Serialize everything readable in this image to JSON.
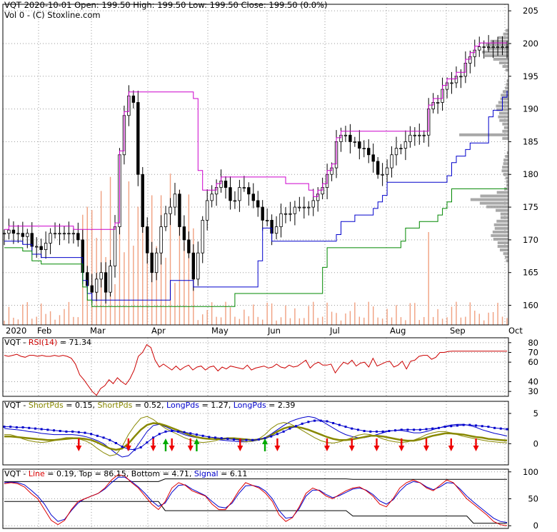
{
  "header": {
    "line1": "VQT  2020-10-01 Open: 199.50  High: 199.50  Low: 199.50  Close: 199.50 (0.0%)",
    "line2": "Vol 0   - (C) Stoxline.com"
  },
  "colors": {
    "background": "#ffffff",
    "frame": "#000000",
    "grid": "#9a9a9a",
    "upper_band": "#cc00cc",
    "upper_band_falling": "#dd0000",
    "lower_band": "#0000cc",
    "long_band": "#008800",
    "volume": "#f0a080",
    "volume_profile": "#a8a8a8",
    "rsi": "#cc0000",
    "short_pds": "#888800",
    "long_pds": "#0000cc",
    "stoch_line": "#dd0000",
    "stoch_signal": "#0000cc",
    "arrow_down": "#ee0000",
    "arrow_up": "#00aa00"
  },
  "chart_data": [
    {
      "type": "candlestick",
      "name": "price",
      "x_labels": [
        "2020",
        "Feb",
        "Mar",
        "Apr",
        "May",
        "Jun",
        "Jul",
        "Aug",
        "Sep",
        "Oct"
      ],
      "y_ticks": [
        160,
        165,
        170,
        175,
        180,
        185,
        190,
        195,
        200,
        205
      ],
      "ylim": [
        157,
        206
      ],
      "y_side": "right",
      "grid": true,
      "close_series": [
        171,
        171.5,
        171,
        171,
        170.5,
        171,
        169,
        169,
        168.5,
        169.5,
        171,
        171,
        171,
        171,
        171,
        171,
        170,
        165,
        163,
        162,
        164,
        165,
        162,
        166,
        172,
        183,
        189,
        192,
        191,
        180,
        172,
        168,
        165,
        168,
        172,
        174,
        175,
        177,
        172,
        170,
        168,
        164,
        168,
        173,
        176,
        177,
        178,
        179,
        178,
        176,
        176,
        178,
        178,
        177,
        176,
        175,
        173,
        173,
        171,
        172,
        174,
        174,
        174,
        175,
        175,
        175,
        175,
        176,
        177,
        178,
        180,
        181,
        185,
        186,
        186,
        185,
        185,
        184,
        184,
        183,
        182,
        180,
        180,
        181,
        183,
        184,
        184,
        185,
        186,
        186,
        186,
        186,
        190,
        191,
        191,
        193,
        194,
        194,
        195,
        195,
        197,
        198,
        199,
        199.5,
        199.5,
        199.5,
        199.5,
        199.5,
        199.5,
        199.5
      ]
    },
    {
      "type": "line",
      "name": "RSI(14)",
      "header": "VQT - RSI(14) = 71.34",
      "label_prefix": "VQT - ",
      "label_name": "RSI(14)",
      "label_value": " = 71.34",
      "y_ticks": [
        30,
        40,
        60,
        70,
        80
      ],
      "ylim": [
        25,
        85
      ],
      "values": [
        67,
        66,
        67,
        68,
        66,
        65,
        67,
        67,
        66,
        67,
        66,
        66,
        67,
        66,
        67,
        66,
        64,
        58,
        47,
        42,
        36,
        30,
        26,
        33,
        36,
        42,
        38,
        44,
        40,
        37,
        43,
        52,
        66,
        70,
        78,
        75,
        62,
        55,
        58,
        55,
        52,
        56,
        52,
        55,
        57,
        52,
        55,
        56,
        52,
        55,
        56,
        51,
        55,
        53,
        56,
        55,
        54,
        53,
        57,
        52,
        54,
        55,
        56,
        54,
        55,
        58,
        55,
        54,
        57,
        55,
        56,
        59,
        62,
        54,
        58,
        60,
        57,
        57,
        58,
        49,
        55,
        60,
        58,
        62,
        56,
        59,
        60,
        55,
        64,
        56,
        58,
        60,
        61,
        55,
        57,
        61,
        53,
        61,
        62,
        66,
        67,
        67,
        63,
        65,
        70,
        70,
        71,
        71.34,
        71.34,
        71.34,
        71.34,
        71.34,
        71.34,
        71.34,
        71.34,
        71.34,
        71.34,
        71.34,
        71.34,
        71.34,
        71.34
      ]
    },
    {
      "type": "line",
      "name": "Pds",
      "header": "VQT - ShortPds = 0.15, ShortPds = 0.52, LongPds = 1.27, LongPds = 2.39",
      "label_vqt": "VQT - ",
      "label_short1": "ShortPds",
      "label_short1_value": " = 0.15, ",
      "label_short2": "ShortPds",
      "label_short2_value": " = 0.52, ",
      "label_long1": "LongPds",
      "label_long1_value": " = 1.27, ",
      "label_long2": "LongPds",
      "label_long2_value": " = 2.39",
      "y_ticks": [
        0,
        5
      ],
      "ylim": [
        -3.5,
        7
      ],
      "short_fast": [
        1.5,
        1.5,
        1.2,
        0.8,
        0.5,
        0.3,
        0.2,
        0.3,
        0.5,
        0.8,
        1.0,
        1.0,
        0.8,
        0.5,
        0.0,
        -0.8,
        -1.5,
        -2.0,
        -1.8,
        -0.5,
        1.5,
        3.0,
        4.2,
        4.5,
        4.0,
        3.2,
        2.5,
        2.0,
        1.5,
        1.0,
        0.6,
        0.3,
        0.2,
        0.3,
        0.5,
        0.8,
        1.0,
        0.8,
        0.5,
        0.3,
        0.4,
        0.8,
        1.5,
        2.5,
        3.2,
        3.5,
        3.3,
        2.8,
        2.2,
        1.6,
        1.0,
        0.5,
        0.2,
        0.1,
        0.3,
        0.6,
        1.0,
        1.4,
        1.6,
        1.5,
        1.2,
        0.8,
        0.5,
        0.3,
        0.2,
        0.3,
        0.6,
        1.0,
        1.5,
        1.8,
        2.0,
        2.0,
        1.8,
        1.5,
        1.2,
        1.0,
        0.8,
        0.6,
        0.4,
        0.3,
        0.2,
        0.15
      ],
      "short_slow": [
        1.2,
        1.2,
        1.1,
        1.0,
        0.9,
        0.8,
        0.7,
        0.6,
        0.6,
        0.7,
        0.8,
        0.9,
        0.9,
        0.8,
        0.6,
        0.2,
        -0.3,
        -0.8,
        -1.0,
        -0.8,
        0.0,
        1.2,
        2.3,
        3.1,
        3.4,
        3.3,
        3.0,
        2.6,
        2.2,
        1.8,
        1.4,
        1.1,
        0.9,
        0.8,
        0.8,
        0.8,
        0.9,
        0.9,
        0.8,
        0.7,
        0.6,
        0.7,
        0.9,
        1.4,
        2.0,
        2.5,
        2.8,
        2.8,
        2.6,
        2.3,
        1.9,
        1.5,
        1.1,
        0.8,
        0.6,
        0.6,
        0.7,
        0.9,
        1.1,
        1.3,
        1.3,
        1.2,
        1.0,
        0.8,
        0.6,
        0.5,
        0.5,
        0.7,
        1.0,
        1.3,
        1.5,
        1.7,
        1.7,
        1.6,
        1.5,
        1.3,
        1.1,
        1.0,
        0.8,
        0.7,
        0.6,
        0.52
      ],
      "long_fast": [
        2.5,
        2.4,
        2.3,
        2.2,
        2.0,
        1.9,
        1.7,
        1.6,
        1.5,
        1.5,
        1.5,
        1.5,
        1.4,
        1.2,
        0.9,
        0.5,
        0.0,
        -0.8,
        -1.6,
        -2.2,
        -2.0,
        -1.0,
        0.5,
        2.0,
        3.0,
        3.2,
        2.8,
        2.3,
        1.9,
        1.5,
        1.2,
        1.0,
        0.9,
        0.8,
        0.7,
        0.6,
        0.5,
        0.4,
        0.3,
        0.3,
        0.4,
        0.6,
        1.0,
        1.6,
        2.3,
        3.0,
        3.6,
        4.0,
        4.3,
        4.5,
        4.3,
        3.8,
        3.2,
        2.6,
        2.0,
        1.5,
        1.2,
        1.0,
        1.0,
        1.2,
        1.5,
        1.8,
        2.1,
        2.2,
        2.2,
        2.0,
        1.8,
        1.8,
        2.0,
        2.3,
        2.6,
        2.9,
        3.1,
        3.2,
        3.2,
        3.0,
        2.7,
        2.3,
        2.0,
        1.7,
        1.5,
        1.27
      ],
      "long_slow": [
        2.8,
        2.8,
        2.7,
        2.7,
        2.6,
        2.5,
        2.4,
        2.3,
        2.2,
        2.1,
        2.0,
        2.0,
        1.9,
        1.8,
        1.6,
        1.3,
        1.0,
        0.6,
        0.1,
        -0.5,
        -0.9,
        -1.0,
        -0.6,
        0.2,
        1.0,
        1.6,
        2.0,
        2.1,
        2.0,
        1.9,
        1.7,
        1.5,
        1.3,
        1.1,
        1.0,
        0.9,
        0.8,
        0.7,
        0.6,
        0.6,
        0.6,
        0.7,
        0.9,
        1.2,
        1.6,
        2.0,
        2.5,
        2.9,
        3.3,
        3.6,
        3.8,
        3.8,
        3.7,
        3.4,
        3.1,
        2.8,
        2.5,
        2.3,
        2.1,
        2.0,
        2.0,
        2.0,
        2.1,
        2.2,
        2.3,
        2.3,
        2.3,
        2.3,
        2.4,
        2.5,
        2.6,
        2.8,
        2.9,
        3.0,
        3.1,
        3.1,
        3.0,
        2.9,
        2.8,
        2.6,
        2.5,
        2.39
      ],
      "down_arrows_x": [
        12,
        20,
        24,
        27,
        30,
        38,
        44,
        52,
        56,
        60,
        64,
        68,
        72,
        76
      ],
      "up_arrows_x": [
        26,
        31,
        42
      ]
    },
    {
      "type": "line",
      "name": "Stochastic",
      "header": "VQT - Line = 0.19, Top = 86.15, Bottom = 4.71, Signal = 6.11",
      "label_prefix": "VQT - ",
      "label_line": "Line",
      "label_line_value": " = 0.19, ",
      "label_rest": "Top = 86.15, Bottom = 4.71, ",
      "label_signal": "Signal",
      "label_signal_value": " = 6.11",
      "y_ticks": [
        0,
        50,
        100
      ],
      "ylim": [
        -5,
        105
      ],
      "line": [
        78,
        80,
        78,
        72,
        60,
        50,
        30,
        10,
        2,
        10,
        30,
        45,
        50,
        55,
        60,
        70,
        85,
        95,
        92,
        80,
        70,
        55,
        40,
        30,
        45,
        70,
        80,
        75,
        65,
        60,
        55,
        40,
        30,
        30,
        45,
        65,
        80,
        75,
        70,
        60,
        45,
        20,
        8,
        15,
        35,
        60,
        70,
        65,
        55,
        50,
        58,
        65,
        70,
        72,
        65,
        55,
        40,
        35,
        50,
        70,
        80,
        85,
        80,
        70,
        65,
        75,
        85,
        80,
        65,
        50,
        40,
        30,
        20,
        8,
        2,
        0.19
      ],
      "signal": [
        80,
        81,
        80,
        76,
        66,
        55,
        40,
        20,
        8,
        12,
        28,
        42,
        50,
        55,
        60,
        68,
        80,
        90,
        90,
        82,
        72,
        60,
        46,
        36,
        42,
        62,
        75,
        76,
        68,
        62,
        56,
        45,
        35,
        33,
        42,
        60,
        74,
        75,
        72,
        64,
        50,
        28,
        14,
        16,
        32,
        55,
        66,
        66,
        58,
        52,
        56,
        62,
        68,
        70,
        66,
        58,
        46,
        40,
        48,
        64,
        76,
        82,
        80,
        72,
        67,
        72,
        80,
        79,
        68,
        55,
        44,
        34,
        24,
        14,
        8,
        6.11
      ],
      "top": 86.15,
      "bottom": 4.71
    }
  ]
}
